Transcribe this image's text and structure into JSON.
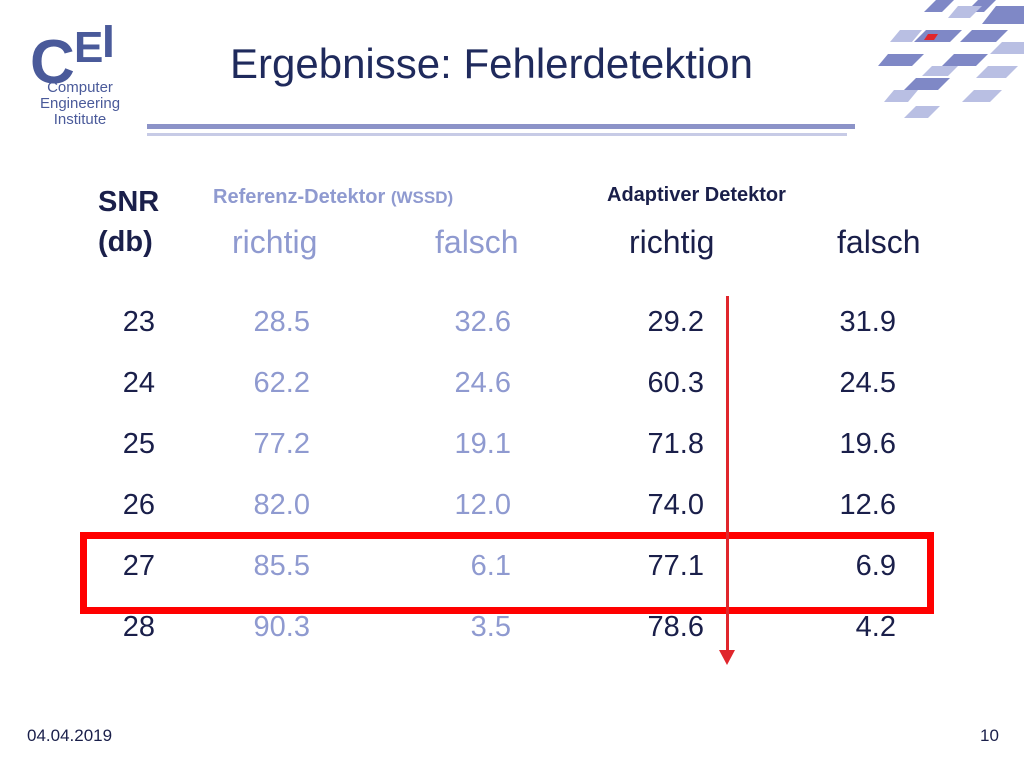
{
  "logo": {
    "letters": [
      "C",
      "E",
      "I"
    ],
    "subtitle_lines": [
      "Computer",
      "Engineering",
      "Institute"
    ]
  },
  "title": "Ergebnisse: Fehlerdetektion",
  "table": {
    "snr_header_line1": "SNR",
    "snr_header_line2": "(db)",
    "ref_header": "Referenz-Detektor",
    "ref_header_suffix": "(WSSD)",
    "ada_header": "Adaptiver Detektor",
    "ref_richtig": "richtig",
    "ref_falsch": "falsch",
    "ada_richtig": "richtig",
    "ada_falsch": "falsch",
    "rows": [
      {
        "snr": "23",
        "ref_richtig": "28.5",
        "ref_falsch": "32.6",
        "ada_richtig": "29.2",
        "ada_falsch": "31.9"
      },
      {
        "snr": "24",
        "ref_richtig": "62.2",
        "ref_falsch": "24.6",
        "ada_richtig": "60.3",
        "ada_falsch": "24.5"
      },
      {
        "snr": "25",
        "ref_richtig": "77.2",
        "ref_falsch": "19.1",
        "ada_richtig": "71.8",
        "ada_falsch": "19.6"
      },
      {
        "snr": "26",
        "ref_richtig": "82.0",
        "ref_falsch": "12.0",
        "ada_richtig": "74.0",
        "ada_falsch": "12.6"
      },
      {
        "snr": "27",
        "ref_richtig": "85.5",
        "ref_falsch": "6.1",
        "ada_richtig": "77.1",
        "ada_falsch": "6.9"
      },
      {
        "snr": "28",
        "ref_richtig": "90.3",
        "ref_falsch": "3.5",
        "ada_richtig": "78.6",
        "ada_falsch": "4.2"
      }
    ],
    "highlighted_snr": "27"
  },
  "footer": {
    "date": "04.04.2019",
    "page": "10"
  },
  "colors": {
    "dark_text": "#1a1f4a",
    "light_text": "#8f9ad0",
    "highlight": "#ff0000",
    "arrow": "#e0262c"
  }
}
